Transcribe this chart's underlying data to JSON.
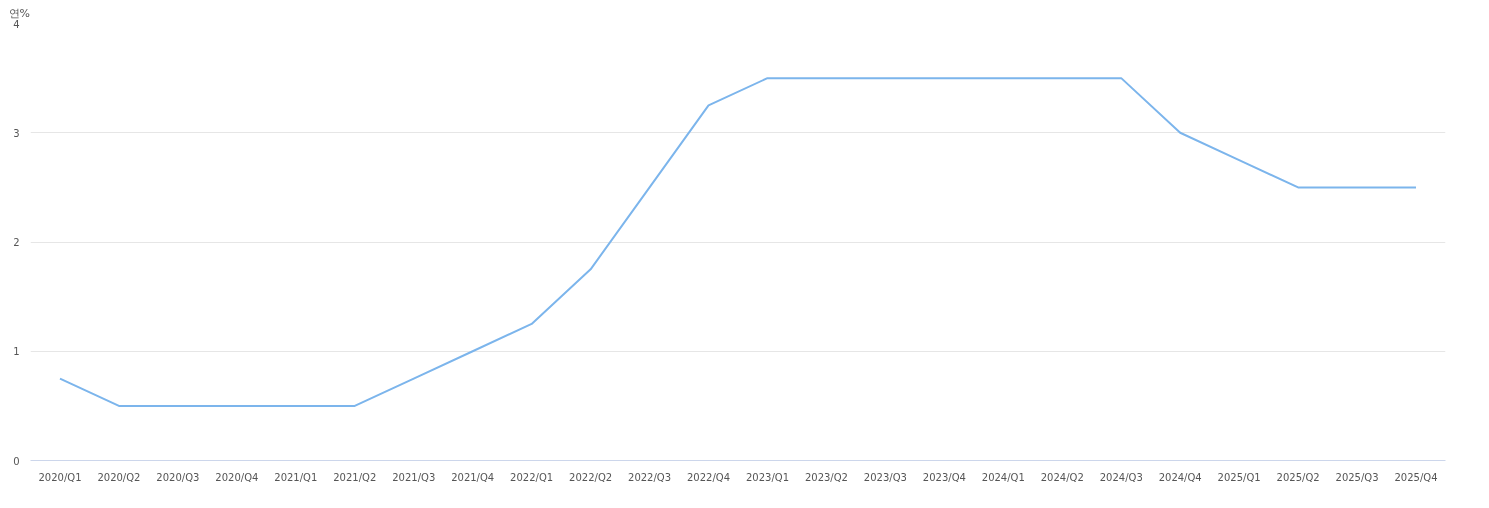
{
  "chart_data": {
    "type": "line",
    "ylabel": "연%",
    "categories": [
      "2020/Q1",
      "2020/Q2",
      "2020/Q3",
      "2020/Q4",
      "2021/Q1",
      "2021/Q2",
      "2021/Q3",
      "2021/Q4",
      "2022/Q1",
      "2022/Q2",
      "2022/Q3",
      "2022/Q4",
      "2023/Q1",
      "2023/Q2",
      "2023/Q3",
      "2023/Q4",
      "2024/Q1",
      "2024/Q2",
      "2024/Q3",
      "2024/Q4",
      "2025/Q1",
      "2025/Q2",
      "2025/Q3",
      "2025/Q4"
    ],
    "series": [
      {
        "color": "#7cb5ec",
        "values": [
          0.75,
          0.5,
          0.5,
          0.5,
          0.5,
          0.5,
          0.75,
          1.0,
          1.25,
          1.75,
          2.5,
          3.25,
          3.5,
          3.5,
          3.5,
          3.5,
          3.5,
          3.5,
          3.5,
          3.0,
          2.75,
          2.5,
          2.5,
          2.5
        ]
      }
    ],
    "ylim": [
      0,
      4
    ],
    "yticks": [
      0,
      1,
      2,
      3,
      4
    ],
    "grid": "y",
    "marker": "none",
    "line_style": "solid"
  }
}
